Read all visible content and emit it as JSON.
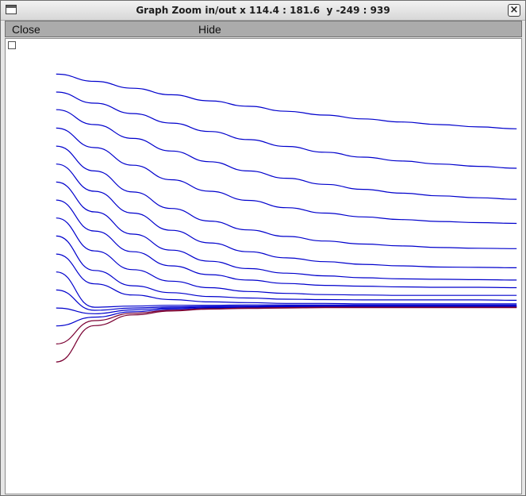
{
  "window": {
    "title": "Graph Zoom in/out x 114.4 : 181.6  y -249 : 939"
  },
  "menu": {
    "close_label": "Close",
    "hide_label": "Hide"
  },
  "icons": {
    "window_icon": "window-icon",
    "close_icon": "close-icon",
    "checkbox_icon": "checkbox-icon"
  },
  "colors": {
    "curve": "#0000cc",
    "curve_alt": "#7a0032",
    "background": "#ffffff"
  },
  "chart_data": {
    "type": "line",
    "xlim": [
      114.4,
      181.6
    ],
    "ylim": [
      -249,
      939
    ],
    "grid": false,
    "series": [
      {
        "x": [
          121,
          126,
          131,
          136,
          141,
          146,
          151,
          156,
          161,
          166,
          171,
          176,
          181
        ],
        "values": [
          847,
          828,
          810,
          793,
          777,
          763,
          750,
          740,
          730,
          722,
          715,
          709,
          704
        ]
      },
      {
        "x": [
          121,
          126,
          131,
          136,
          141,
          146,
          151,
          156,
          161,
          166,
          171,
          176,
          181
        ],
        "values": [
          800,
          771,
          744,
          719,
          697,
          676,
          658,
          643,
          630,
          620,
          612,
          606,
          601
        ]
      },
      {
        "x": [
          121,
          126,
          131,
          136,
          141,
          146,
          151,
          156,
          161,
          166,
          171,
          176,
          181
        ],
        "values": [
          754,
          715,
          679,
          646,
          618,
          594,
          575,
          559,
          546,
          536,
          529,
          524,
          520
        ]
      },
      {
        "x": [
          121,
          126,
          131,
          136,
          141,
          146,
          151,
          156,
          161,
          166,
          171,
          176,
          181
        ],
        "values": [
          706,
          655,
          609,
          571,
          541,
          517,
          498,
          484,
          474,
          467,
          462,
          459,
          457
        ]
      },
      {
        "x": [
          121,
          126,
          131,
          136,
          141,
          146,
          151,
          156,
          161,
          166,
          171,
          176,
          181
        ],
        "values": [
          659,
          594,
          539,
          496,
          463,
          440,
          423,
          411,
          403,
          398,
          394,
          392,
          391
        ]
      },
      {
        "x": [
          121,
          126,
          131,
          136,
          141,
          146,
          151,
          156,
          161,
          166,
          171,
          176,
          181
        ],
        "values": [
          612,
          541,
          484,
          439,
          406,
          383,
          367,
          357,
          350,
          346,
          343,
          342,
          341
        ]
      },
      {
        "x": [
          121,
          126,
          131,
          136,
          141,
          146,
          151,
          156,
          161,
          166,
          171,
          176,
          181
        ],
        "values": [
          565,
          487,
          429,
          387,
          358,
          339,
          327,
          320,
          315,
          312,
          311,
          310,
          309
        ]
      },
      {
        "x": [
          121,
          126,
          131,
          136,
          141,
          146,
          151,
          156,
          161,
          166,
          171,
          176,
          181
        ],
        "values": [
          518,
          437,
          383,
          346,
          323,
          309,
          300,
          295,
          293,
          291,
          290,
          290,
          289
        ]
      },
      {
        "x": [
          121,
          126,
          131,
          136,
          141,
          146,
          151,
          156,
          161,
          166,
          171,
          176,
          181
        ],
        "values": [
          471,
          385,
          336,
          306,
          289,
          279,
          274,
          271,
          270,
          269,
          269,
          269,
          269
        ]
      },
      {
        "x": [
          121,
          126,
          131,
          136,
          141,
          146,
          151,
          156,
          161,
          166,
          171,
          176,
          181
        ],
        "values": [
          424,
          334,
          294,
          276,
          266,
          262,
          259,
          258,
          257,
          257,
          257,
          257,
          256
        ]
      },
      {
        "x": [
          121,
          126,
          131,
          136,
          141,
          146,
          151,
          156,
          161,
          166,
          171,
          176,
          181
        ],
        "values": [
          377,
          299,
          270,
          258,
          252,
          250,
          248,
          248,
          247,
          247,
          247,
          247,
          247
        ]
      },
      {
        "x": [
          121,
          126,
          131,
          136,
          141,
          146,
          151,
          156,
          161,
          166,
          171,
          176,
          181
        ],
        "values": [
          330,
          238,
          241,
          243,
          243,
          244,
          244,
          244,
          244,
          244,
          244,
          244,
          244
        ]
      },
      {
        "x": [
          121,
          126,
          131,
          136,
          141,
          146,
          151,
          156,
          161,
          166,
          171,
          176,
          181
        ],
        "values": [
          283,
          230,
          236,
          239,
          240,
          241,
          242,
          242,
          242,
          242,
          242,
          242,
          242
        ]
      },
      {
        "x": [
          121,
          126,
          131,
          136,
          141,
          146,
          151,
          156,
          161,
          166,
          171,
          176,
          181
        ],
        "values": [
          236,
          221,
          231,
          236,
          238,
          239,
          240,
          240,
          240,
          240,
          240,
          240,
          240
        ]
      },
      {
        "x": [
          121,
          126,
          131,
          136,
          141,
          146,
          151,
          156,
          161,
          166,
          171,
          176,
          181
        ],
        "values": [
          189,
          212,
          226,
          233,
          236,
          238,
          239,
          239,
          239,
          239,
          239,
          239,
          239
        ]
      },
      {
        "x": [
          121,
          126,
          131,
          136,
          141,
          146,
          151,
          156,
          161,
          166,
          171,
          176,
          181
        ],
        "values": [
          142,
          203,
          222,
          230,
          234,
          236,
          237,
          238,
          238,
          238,
          238,
          238,
          238
        ]
      },
      {
        "x": [
          121,
          126,
          131,
          136,
          141,
          146,
          151,
          156,
          161,
          166,
          171,
          176,
          181
        ],
        "values": [
          95,
          190,
          218,
          228,
          233,
          235,
          236,
          237,
          237,
          237,
          237,
          237,
          237
        ]
      }
    ]
  }
}
